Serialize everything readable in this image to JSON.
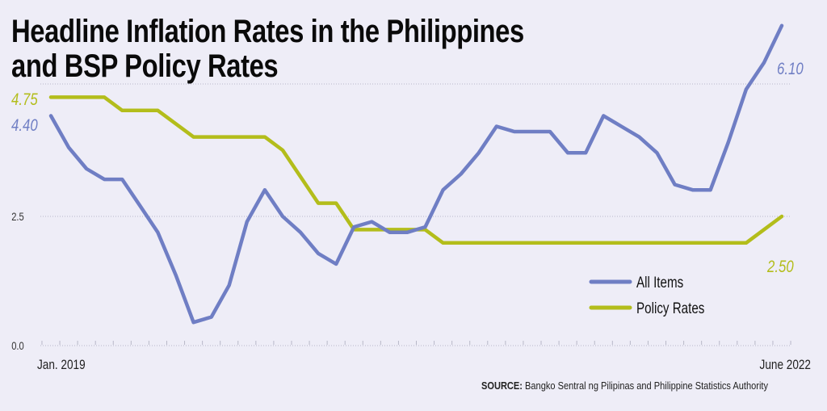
{
  "chart_data": {
    "type": "line",
    "title": "Headline Inflation Rates in the Philippines and BSP Policy Rates",
    "title_lines": [
      "Headline Inflation Rates in the Philippines",
      "and BSP Policy Rates"
    ],
    "x_start_label": "Jan. 2019",
    "x_end_label": "June 2022",
    "x_months": 42,
    "ylim": [
      0,
      6.3
    ],
    "y_ticks": [
      {
        "value": 0,
        "label": "0.0"
      },
      {
        "value": 2.5,
        "label": "2.5"
      },
      {
        "value": 5.0,
        "label": ""
      }
    ],
    "grid": true,
    "legend_position": "bottom-right",
    "series": [
      {
        "name": "All Items",
        "color": "#6f7ec4",
        "values": [
          4.4,
          3.8,
          3.4,
          3.2,
          3.2,
          2.7,
          2.2,
          1.4,
          0.5,
          0.6,
          1.2,
          2.4,
          3.0,
          2.5,
          2.2,
          1.8,
          1.6,
          2.3,
          2.4,
          2.2,
          2.2,
          2.3,
          3.0,
          3.3,
          3.7,
          4.2,
          4.1,
          4.1,
          4.1,
          3.7,
          3.7,
          4.4,
          4.2,
          4.0,
          3.7,
          3.1,
          3.0,
          3.0,
          3.9,
          4.9,
          5.4,
          6.1
        ],
        "start_label": "4.40",
        "end_label": "6.10"
      },
      {
        "name": "Policy Rates",
        "color": "#b3bd1b",
        "values": [
          4.75,
          4.75,
          4.75,
          4.75,
          4.5,
          4.5,
          4.5,
          4.25,
          4.0,
          4.0,
          4.0,
          4.0,
          4.0,
          3.75,
          3.25,
          2.75,
          2.75,
          2.25,
          2.25,
          2.25,
          2.25,
          2.25,
          2.0,
          2.0,
          2.0,
          2.0,
          2.0,
          2.0,
          2.0,
          2.0,
          2.0,
          2.0,
          2.0,
          2.0,
          2.0,
          2.0,
          2.0,
          2.0,
          2.0,
          2.0,
          2.25,
          2.5
        ],
        "start_label": "4.75",
        "end_label": "2.50"
      }
    ]
  },
  "source": {
    "label": "SOURCE:",
    "text": "Bangko Sentral ng Pilipinas and Philippine Statistics Authority"
  }
}
